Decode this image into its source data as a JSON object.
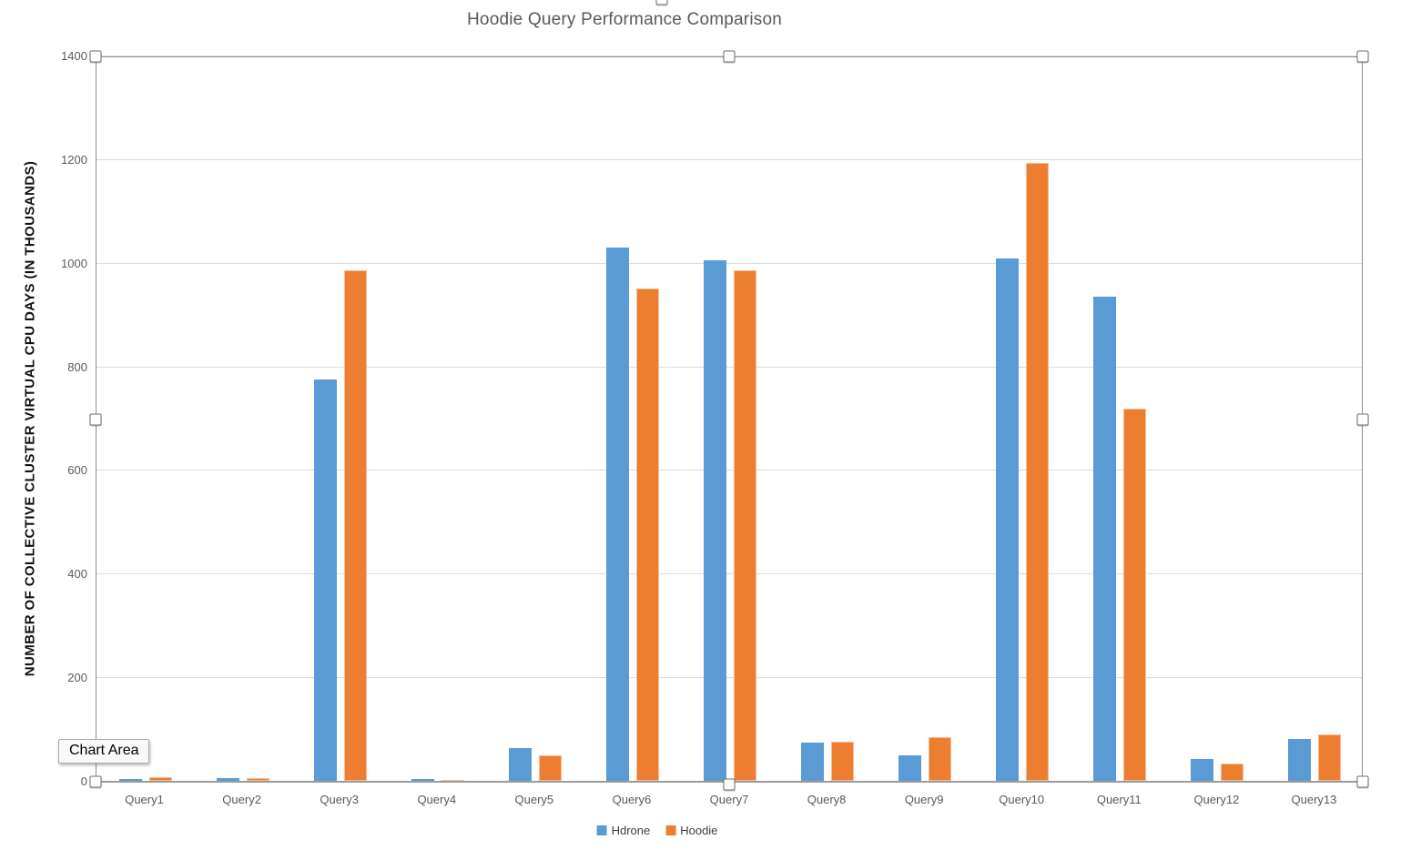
{
  "chart": {
    "title": "Hoodie Query Performance Comparison",
    "tooltip_label": "Chart Area"
  },
  "chart_data": {
    "type": "bar",
    "title": "Hoodie Query Performance Comparison",
    "xlabel": "",
    "ylabel": "NUMBER OF COLLECTIVE CLUSTER VIRTUAL CPU DAYS (IN THOUSANDS)",
    "categories": [
      "Query1",
      "Query2",
      "Query3",
      "Query4",
      "Query5",
      "Query6",
      "Query7",
      "Query8",
      "Query9",
      "Query10",
      "Query11",
      "Query12",
      "Query13"
    ],
    "series": [
      {
        "name": "Hdrone",
        "color": "#5B9BD5",
        "values": [
          4,
          6,
          775,
          3,
          63,
          1030,
          1005,
          73,
          50,
          1008,
          935,
          42,
          80
        ]
      },
      {
        "name": "Hoodie",
        "color": "#ED7D31",
        "values": [
          7,
          5,
          985,
          2,
          50,
          950,
          985,
          75,
          85,
          1193,
          718,
          33,
          89
        ]
      }
    ],
    "ylim": [
      0,
      1400
    ],
    "yticks": [
      0,
      200,
      400,
      600,
      800,
      1000,
      1200,
      1400
    ],
    "grid": true,
    "legend_position": "bottom"
  },
  "selection": {
    "handle_positions": [
      "nw",
      "n",
      "ne",
      "w",
      "e",
      "sw",
      "s",
      "se",
      "chart-top"
    ]
  }
}
